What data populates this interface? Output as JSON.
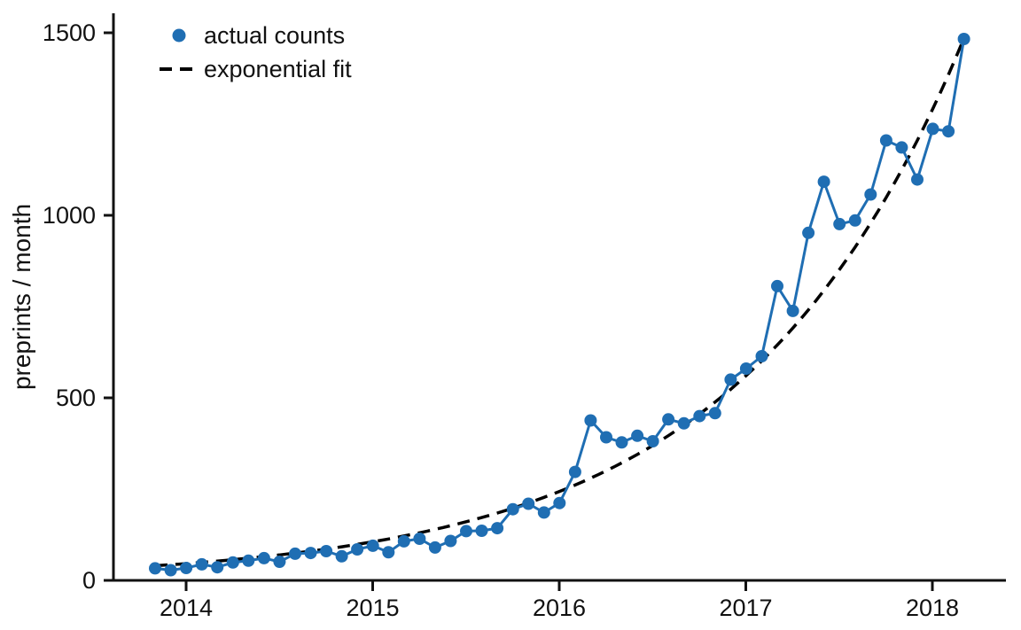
{
  "chart_data": {
    "type": "line",
    "title": "",
    "xlabel": "",
    "ylabel": "preprints / month",
    "legend_position": "upper-left",
    "grid": false,
    "y_ticks": [
      0,
      500,
      1000,
      1500
    ],
    "y_tick_labels": [
      "0",
      "500",
      "1000",
      "1500"
    ],
    "x_tick_labels": [
      "2014",
      "2015",
      "2016",
      "2017",
      "2018"
    ],
    "ylim": [
      0,
      1560
    ],
    "legend_labels": [
      "actual counts",
      "exponential fit"
    ],
    "colors": {
      "actual_counts": "#1f6eb3",
      "exponential_fit": "#000000",
      "axis": "#111111"
    },
    "months": [
      "2013-11",
      "2013-12",
      "2014-01",
      "2014-02",
      "2014-03",
      "2014-04",
      "2014-05",
      "2014-06",
      "2014-07",
      "2014-08",
      "2014-09",
      "2014-10",
      "2014-11",
      "2014-12",
      "2015-01",
      "2015-02",
      "2015-03",
      "2015-04",
      "2015-05",
      "2015-06",
      "2015-07",
      "2015-08",
      "2015-09",
      "2015-10",
      "2015-11",
      "2015-12",
      "2016-01",
      "2016-02",
      "2016-03",
      "2016-04",
      "2016-05",
      "2016-06",
      "2016-07",
      "2016-08",
      "2016-09",
      "2016-10",
      "2016-11",
      "2016-12",
      "2017-01",
      "2017-02",
      "2017-03",
      "2017-04",
      "2017-05",
      "2017-06",
      "2017-07",
      "2017-08",
      "2017-09",
      "2017-10",
      "2017-11",
      "2017-12",
      "2018-01",
      "2018-02",
      "2018-03"
    ],
    "series": [
      {
        "name": "actual counts",
        "style": "solid-line-with-dots",
        "values": [
          33,
          28,
          34,
          44,
          36,
          49,
          54,
          61,
          51,
          73,
          75,
          80,
          66,
          85,
          95,
          77,
          107,
          114,
          90,
          108,
          135,
          136,
          143,
          195,
          210,
          186,
          212,
          297,
          438,
          392,
          378,
          396,
          381,
          441,
          430,
          450,
          458,
          550,
          580,
          614,
          806,
          738,
          952,
          1092,
          976,
          986,
          1057,
          1205,
          1186,
          1098,
          1237,
          1230,
          1483
        ]
      },
      {
        "name": "exponential fit",
        "style": "dashed-curve",
        "fit_model": "value = a * exp(b * t_months_since_2013-11)",
        "a": 40,
        "b_per_month": 0.0695,
        "t_start": 0,
        "t_end": 52
      }
    ]
  }
}
